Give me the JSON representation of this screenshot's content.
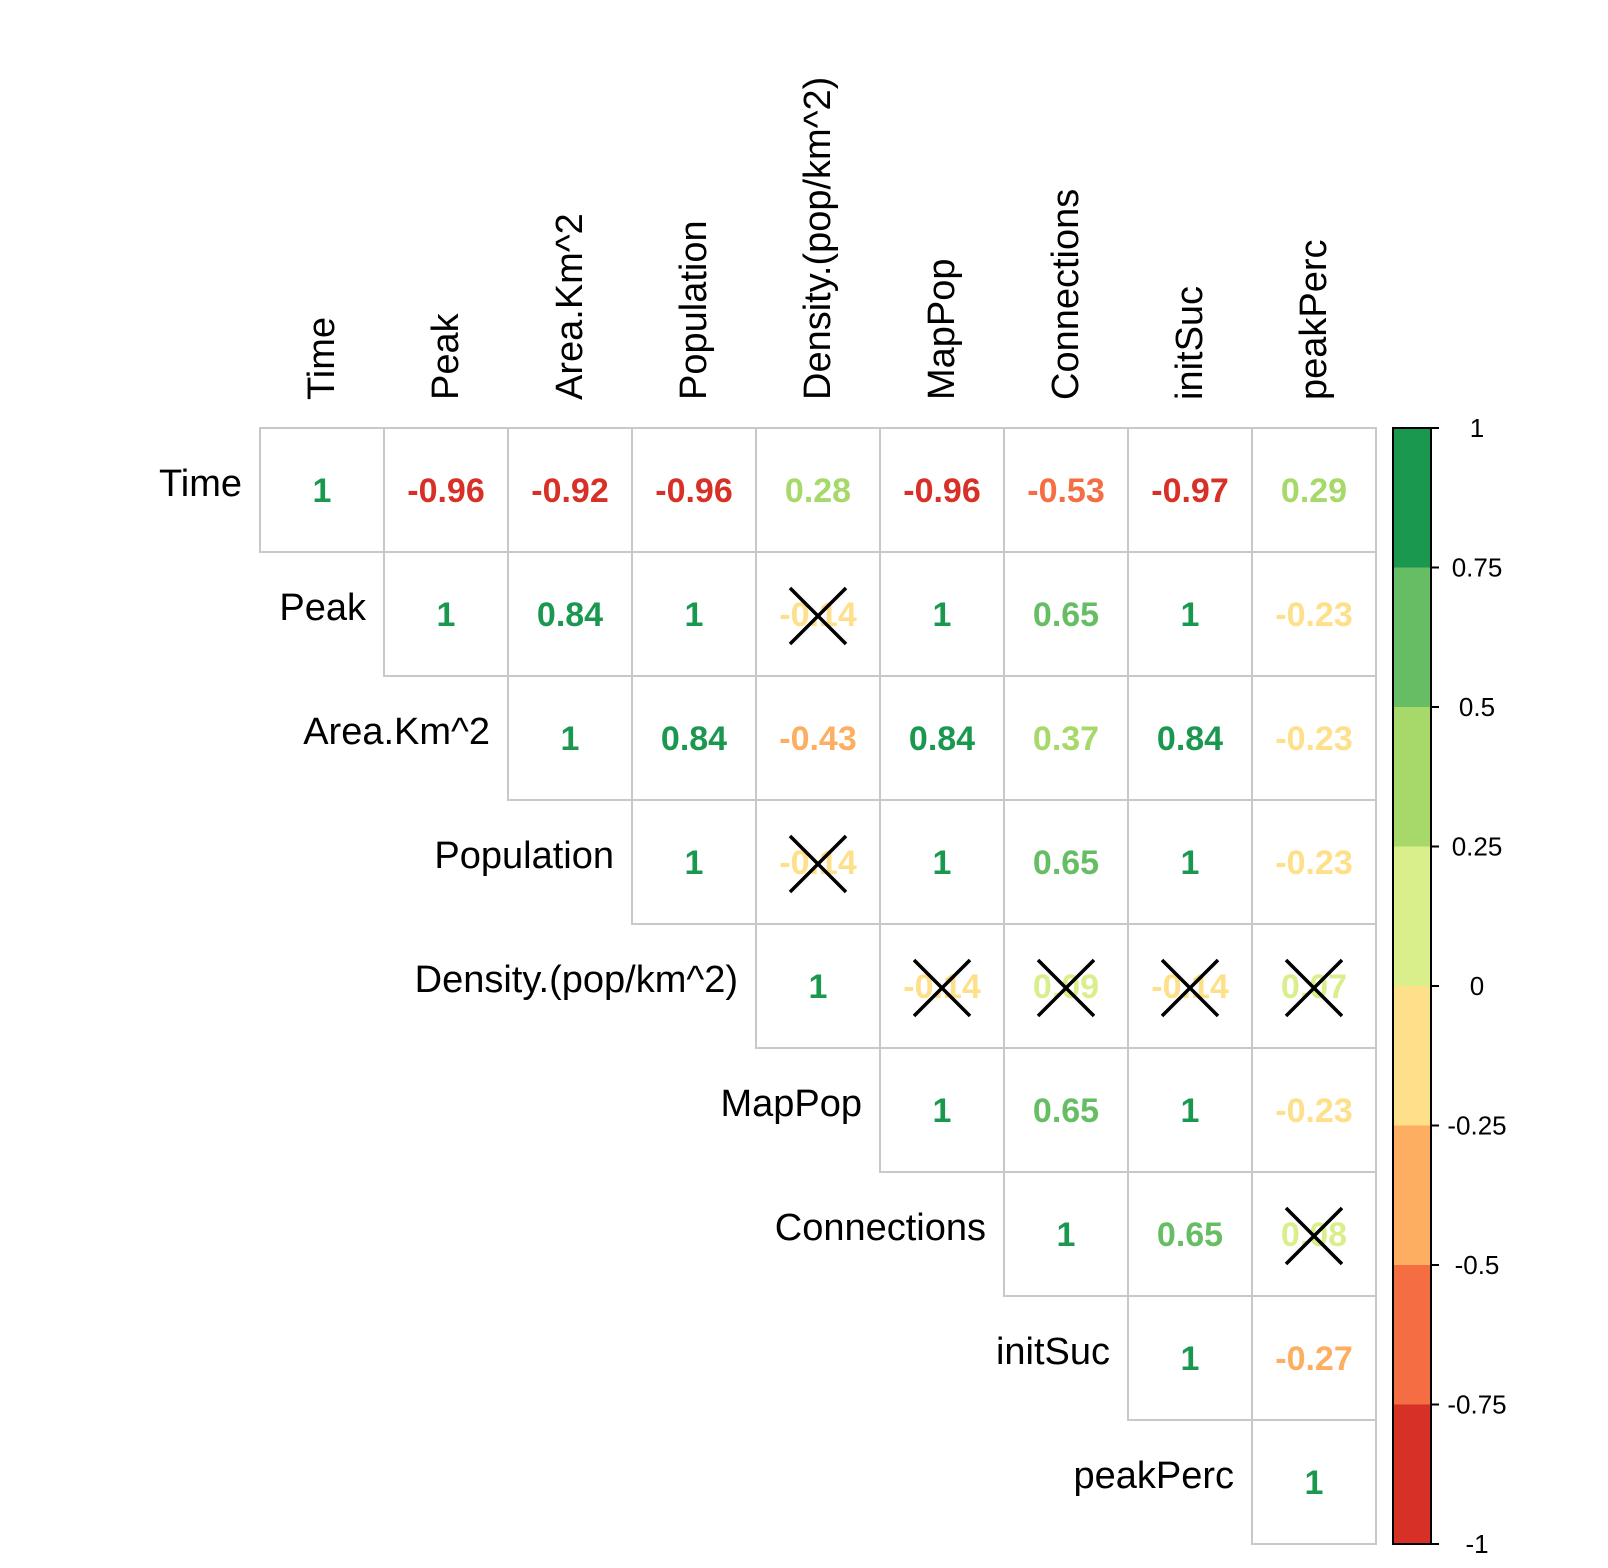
{
  "chart_data": {
    "type": "heatmap",
    "subtype": "correlation-matrix-upper",
    "variables": [
      "Time",
      "Peak",
      "Area.Km^2",
      "Population",
      "Density.(pop/km^2)",
      "MapPop",
      "Connections",
      "initSuc",
      "peakPerc"
    ],
    "matrix": [
      [
        1,
        -0.96,
        -0.92,
        -0.96,
        0.28,
        -0.96,
        -0.53,
        -0.97,
        0.29
      ],
      [
        null,
        1,
        0.84,
        1,
        -0.14,
        1,
        0.65,
        1,
        -0.23
      ],
      [
        null,
        null,
        1,
        0.84,
        -0.43,
        0.84,
        0.37,
        0.84,
        -0.23
      ],
      [
        null,
        null,
        null,
        1,
        -0.14,
        1,
        0.65,
        1,
        -0.23
      ],
      [
        null,
        null,
        null,
        null,
        1,
        -0.14,
        0.09,
        -0.14,
        0.07
      ],
      [
        null,
        null,
        null,
        null,
        null,
        1,
        0.65,
        1,
        -0.23
      ],
      [
        null,
        null,
        null,
        null,
        null,
        null,
        1,
        0.65,
        0.08
      ],
      [
        null,
        null,
        null,
        null,
        null,
        null,
        null,
        1,
        -0.27
      ],
      [
        null,
        null,
        null,
        null,
        null,
        null,
        null,
        null,
        1
      ]
    ],
    "labels": [
      [
        "1",
        "-0.96",
        "-0.92",
        "-0.96",
        "0.28",
        "-0.96",
        "-0.53",
        "-0.97",
        "0.29"
      ],
      [
        null,
        "1",
        "0.84",
        "1",
        "-0.14",
        "1",
        "0.65",
        "1",
        "-0.23"
      ],
      [
        null,
        null,
        "1",
        "0.84",
        "-0.43",
        "0.84",
        "0.37",
        "0.84",
        "-0.23"
      ],
      [
        null,
        null,
        null,
        "1",
        "-0.14",
        "1",
        "0.65",
        "1",
        "-0.23"
      ],
      [
        null,
        null,
        null,
        null,
        "1",
        "-0.14",
        "0.09",
        "-0.14",
        "0.07"
      ],
      [
        null,
        null,
        null,
        null,
        null,
        "1",
        "0.65",
        "1",
        "-0.23"
      ],
      [
        null,
        null,
        null,
        null,
        null,
        null,
        "1",
        "0.65",
        "0.08"
      ],
      [
        null,
        null,
        null,
        null,
        null,
        null,
        null,
        "1",
        "-0.27"
      ],
      [
        null,
        null,
        null,
        null,
        null,
        null,
        null,
        null,
        "1"
      ]
    ],
    "insignificant": [
      [
        1,
        4
      ],
      [
        3,
        4
      ],
      [
        4,
        5
      ],
      [
        4,
        6
      ],
      [
        4,
        7
      ],
      [
        4,
        8
      ],
      [
        6,
        8
      ]
    ],
    "colorbar": {
      "range": [
        -1,
        1
      ],
      "bins": [
        {
          "from": -1,
          "to": -0.75,
          "color": "#d73027"
        },
        {
          "from": -0.75,
          "to": -0.5,
          "color": "#f46d43"
        },
        {
          "from": -0.5,
          "to": -0.25,
          "color": "#fdae61"
        },
        {
          "from": -0.25,
          "to": 0,
          "color": "#fee08b"
        },
        {
          "from": 0,
          "to": 0.25,
          "color": "#d9ef8b"
        },
        {
          "from": 0.25,
          "to": 0.5,
          "color": "#a6d96a"
        },
        {
          "from": 0.5,
          "to": 0.75,
          "color": "#66bd63"
        },
        {
          "from": 0.75,
          "to": 1,
          "color": "#1a9850"
        }
      ],
      "ticks": [
        1,
        0.75,
        0.5,
        0.25,
        0,
        -0.25,
        -0.5,
        -0.75,
        -1
      ],
      "tick_labels": [
        "1",
        "0.75",
        "0.5",
        "0.25",
        "0",
        "-0.25",
        "-0.5",
        "-0.75",
        "-1"
      ]
    },
    "grid_color": "#c8c8c8",
    "cross_color": "#000000",
    "label_color": "#000000"
  }
}
